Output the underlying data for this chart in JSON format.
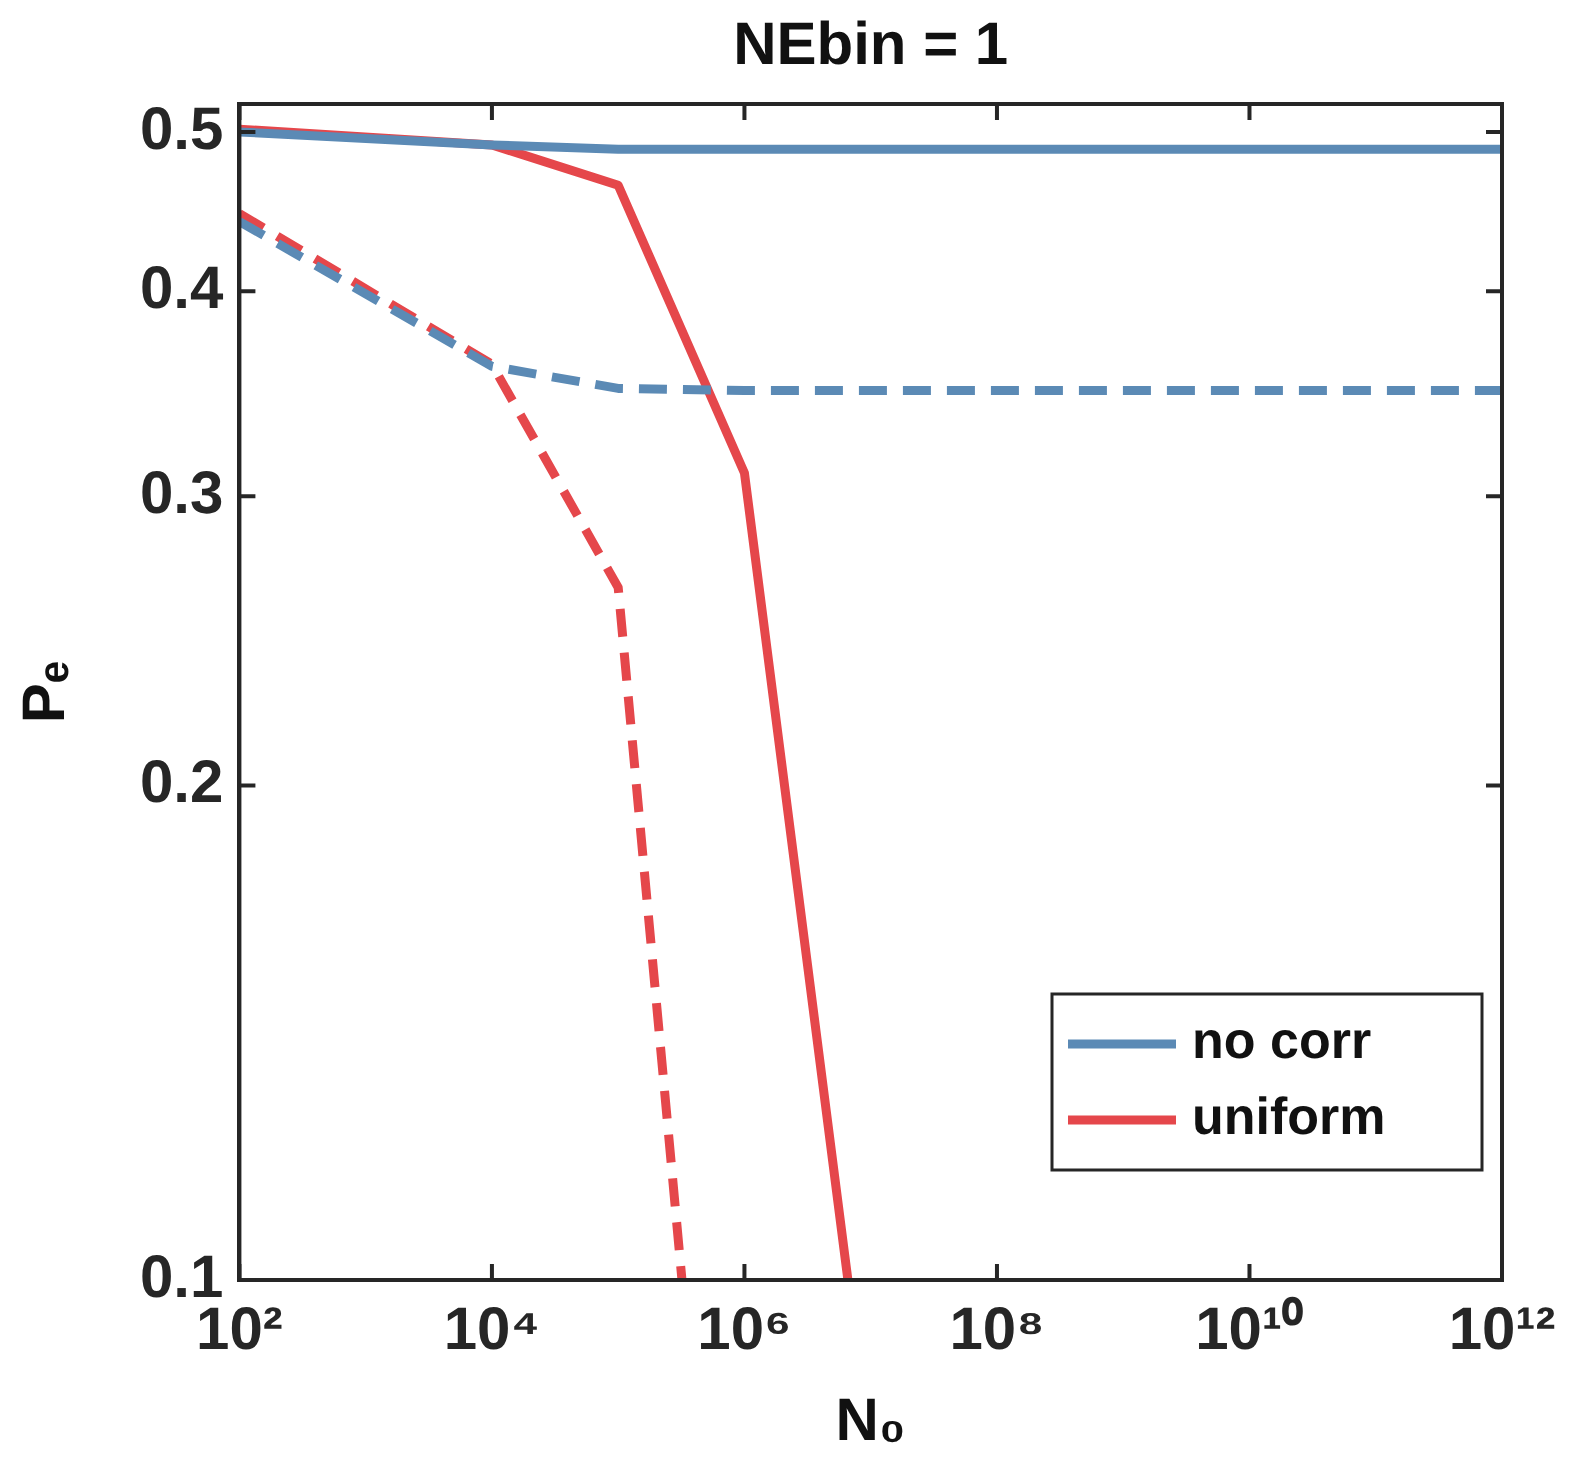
{
  "chart_data": {
    "type": "line",
    "title": "NEbin = 1",
    "xlabel": "N₀",
    "ylabel": "Pₑ",
    "log": "xy",
    "grid": false,
    "legend": "bottom right",
    "marker": "none",
    "xlim": [
      100,
      1000000000000
    ],
    "xticks": [
      {
        "value": 100,
        "label": "10²"
      },
      {
        "value": 10000,
        "label": "10⁴"
      },
      {
        "value": 1000000,
        "label": "10⁶"
      },
      {
        "value": 100000000,
        "label": "10⁸"
      },
      {
        "value": 10000000000,
        "label": "10¹⁰"
      },
      {
        "value": 1000000000000,
        "label": "10¹²"
      }
    ],
    "ylim": [
      0.1,
      0.52
    ],
    "yticks": [
      0.1,
      0.2,
      0.3,
      0.4,
      0.5
    ],
    "series": [
      {
        "name": "no corr",
        "color": "#5b8ab5",
        "line_style": "solid",
        "x": [
          100,
          10000,
          100000,
          1000000,
          10000000,
          100000000,
          10000000000,
          1000000000000
        ],
        "values": [
          0.5,
          0.491,
          0.488,
          0.488,
          0.488,
          0.488,
          0.488,
          0.488
        ]
      },
      {
        "color": "#5b8ab5",
        "line_style": "dashed",
        "x": [
          100,
          10000,
          100000,
          1000000,
          10000000,
          100000000,
          10000000000,
          1000000000000
        ],
        "values": [
          0.441,
          0.36,
          0.349,
          0.348,
          0.348,
          0.348,
          0.348,
          0.348
        ]
      },
      {
        "name": "uniform",
        "color": "#e5474b",
        "line_style": "solid",
        "x": [
          100,
          10000,
          100000,
          1000000,
          6600000
        ],
        "values": [
          0.502,
          0.491,
          0.464,
          0.31,
          0.1
        ]
      },
      {
        "color": "#e5474b",
        "line_style": "dashed",
        "x": [
          100,
          10000,
          100000,
          320000
        ],
        "values": [
          0.446,
          0.361,
          0.264,
          0.1
        ]
      }
    ]
  }
}
